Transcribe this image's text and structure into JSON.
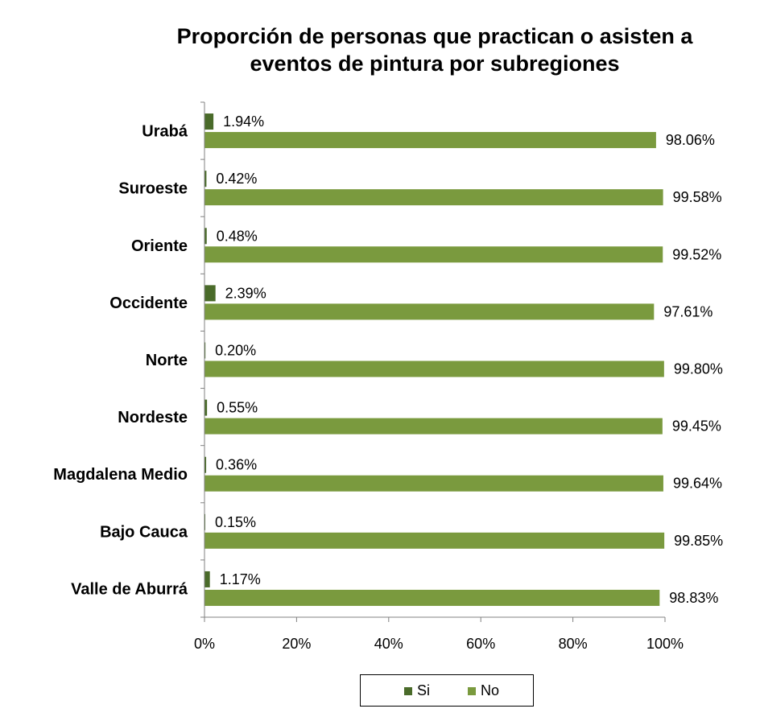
{
  "chart_data": {
    "type": "bar",
    "orientation": "horizontal",
    "stacked": false,
    "title": "Proporción de personas que practican o asisten a eventos de pintura por subregiones",
    "categories": [
      "Urabá",
      "Suroeste",
      "Oriente",
      "Occidente",
      "Norte",
      "Nordeste",
      "Magdalena Medio",
      "Bajo Cauca",
      "Valle de Aburrá"
    ],
    "series": [
      {
        "name": "Si",
        "color": "#4a6b2a",
        "values": [
          1.94,
          0.42,
          0.48,
          2.39,
          0.2,
          0.55,
          0.36,
          0.15,
          1.17
        ],
        "labels": [
          "1.94%",
          "0.42%",
          "0.48%",
          "2.39%",
          "0.20%",
          "0.55%",
          "0.36%",
          "0.15%",
          "1.17%"
        ]
      },
      {
        "name": "No",
        "color": "#7a9a3e",
        "values": [
          98.06,
          99.58,
          99.52,
          97.61,
          99.8,
          99.45,
          99.64,
          99.85,
          98.83
        ],
        "labels": [
          "98.06%",
          "99.58%",
          "99.52%",
          "97.61%",
          "99.80%",
          "99.45%",
          "99.64%",
          "99.85%",
          "98.83%"
        ]
      }
    ],
    "xlim": [
      0,
      100
    ],
    "xticks": [
      0,
      20,
      40,
      60,
      80,
      100
    ],
    "xtick_labels": [
      "0%",
      "20%",
      "40%",
      "60%",
      "80%",
      "100%"
    ],
    "grid": false,
    "legend_position": "bottom"
  }
}
